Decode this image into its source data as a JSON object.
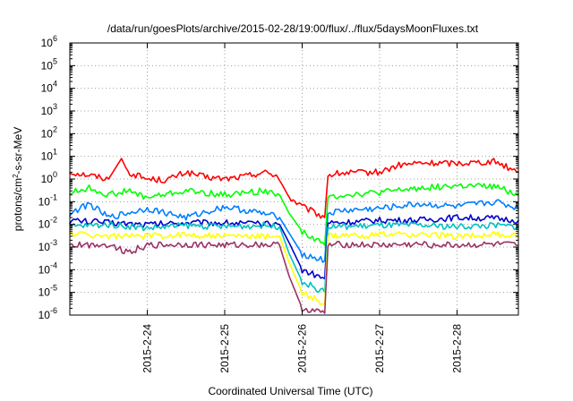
{
  "chart_data": {
    "type": "line",
    "title": "/data/run/goesPlots/archive/2015-02-28/19:00/flux/../flux/5daysMoonFluxes.txt",
    "xlabel": "Coordinated Universal Time (UTC)",
    "ylabel": "protons/cm²-s-sr-MeV",
    "ylabel_parts": {
      "prefix": "protons/cm",
      "sup": "2",
      "suffix": "-s-sr-MeV"
    },
    "yscale": "log",
    "ylim": [
      1e-06,
      1000000.0
    ],
    "xlim": [
      "2015-02-23T00:00",
      "2015-02-28T19:00"
    ],
    "y_ticks": [
      {
        "exp": "-6"
      },
      {
        "exp": "-5"
      },
      {
        "exp": "-4"
      },
      {
        "exp": "-3"
      },
      {
        "exp": "-2"
      },
      {
        "exp": "-1"
      },
      {
        "exp": "0"
      },
      {
        "exp": "1"
      },
      {
        "exp": "2"
      },
      {
        "exp": "3"
      },
      {
        "exp": "4"
      },
      {
        "exp": "5"
      },
      {
        "exp": "6"
      }
    ],
    "y_tick_base": "10",
    "x_ticks": [
      {
        "date": "2015-02-24T00:00",
        "label": "2015-2-24"
      },
      {
        "date": "2015-02-25T00:00",
        "label": "2015-2-25"
      },
      {
        "date": "2015-02-26T00:00",
        "label": "2015-2-26"
      },
      {
        "date": "2015-02-27T00:00",
        "label": "2015-2-27"
      },
      {
        "date": "2015-02-28T00:00",
        "label": "2015-2-28"
      }
    ],
    "grid": true,
    "series": [
      {
        "color": "#ff0000",
        "points": [
          [
            "2015-02-23T00:00",
            2.0
          ],
          [
            "2015-02-23T06:00",
            1.5
          ],
          [
            "2015-02-23T12:00",
            1.0
          ],
          [
            "2015-02-23T16:00",
            8.0
          ],
          [
            "2015-02-23T18:00",
            2.0
          ],
          [
            "2015-02-24T00:00",
            1.0
          ],
          [
            "2015-02-24T06:00",
            0.9
          ],
          [
            "2015-02-24T12:00",
            2.0
          ],
          [
            "2015-02-24T18:00",
            1.2
          ],
          [
            "2015-02-25T00:00",
            1.0
          ],
          [
            "2015-02-25T06:00",
            1.3
          ],
          [
            "2015-02-25T12:00",
            2.0
          ],
          [
            "2015-02-25T16:00",
            1.5
          ],
          [
            "2015-02-25T18:00",
            0.5
          ],
          [
            "2015-02-25T20:00",
            0.15
          ],
          [
            "2015-02-26T00:00",
            0.06
          ],
          [
            "2015-02-26T07:00",
            0.02
          ],
          [
            "2015-02-26T08:00",
            1.5
          ],
          [
            "2015-02-26T12:00",
            1.8
          ],
          [
            "2015-02-27T00:00",
            2.0
          ],
          [
            "2015-02-27T06:00",
            4.0
          ],
          [
            "2015-02-27T12:00",
            5.0
          ],
          [
            "2015-02-28T00:00",
            5.0
          ],
          [
            "2015-02-28T12:00",
            6.0
          ],
          [
            "2015-02-28T19:00",
            2.0
          ]
        ]
      },
      {
        "color": "#00ff00",
        "points": [
          [
            "2015-02-23T00:00",
            0.25
          ],
          [
            "2015-02-23T06:00",
            0.4
          ],
          [
            "2015-02-23T12:00",
            0.2
          ],
          [
            "2015-02-23T18:00",
            0.3
          ],
          [
            "2015-02-24T00:00",
            0.15
          ],
          [
            "2015-02-24T12:00",
            0.3
          ],
          [
            "2015-02-25T00:00",
            0.2
          ],
          [
            "2015-02-25T12:00",
            0.3
          ],
          [
            "2015-02-25T17:00",
            0.2
          ],
          [
            "2015-02-25T20:00",
            0.03
          ],
          [
            "2015-02-26T00:00",
            0.005
          ],
          [
            "2015-02-26T07:00",
            0.0012
          ],
          [
            "2015-02-26T08:00",
            0.15
          ],
          [
            "2015-02-26T12:00",
            0.2
          ],
          [
            "2015-02-27T00:00",
            0.25
          ],
          [
            "2015-02-27T12:00",
            0.4
          ],
          [
            "2015-02-28T00:00",
            0.5
          ],
          [
            "2015-02-28T12:00",
            0.45
          ],
          [
            "2015-02-28T19:00",
            0.2
          ]
        ]
      },
      {
        "color": "#0080ff",
        "points": [
          [
            "2015-02-23T00:00",
            0.03
          ],
          [
            "2015-02-23T06:00",
            0.08
          ],
          [
            "2015-02-23T12:00",
            0.02
          ],
          [
            "2015-02-24T00:00",
            0.05
          ],
          [
            "2015-02-24T12:00",
            0.02
          ],
          [
            "2015-02-25T00:00",
            0.06
          ],
          [
            "2015-02-25T12:00",
            0.03
          ],
          [
            "2015-02-25T17:00",
            0.02
          ],
          [
            "2015-02-25T20:00",
            0.004
          ],
          [
            "2015-02-26T00:00",
            0.0005
          ],
          [
            "2015-02-26T07:00",
            0.00025
          ],
          [
            "2015-02-26T08:00",
            0.03
          ],
          [
            "2015-02-26T12:00",
            0.04
          ],
          [
            "2015-02-27T00:00",
            0.05
          ],
          [
            "2015-02-27T12:00",
            0.08
          ],
          [
            "2015-02-28T00:00",
            0.06
          ],
          [
            "2015-02-28T12:00",
            0.1
          ],
          [
            "2015-02-28T19:00",
            0.05
          ]
        ]
      },
      {
        "color": "#0000cc",
        "points": [
          [
            "2015-02-23T00:00",
            0.015
          ],
          [
            "2015-02-23T12:00",
            0.012
          ],
          [
            "2015-02-24T00:00",
            0.01
          ],
          [
            "2015-02-24T12:00",
            0.012
          ],
          [
            "2015-02-25T00:00",
            0.012
          ],
          [
            "2015-02-25T12:00",
            0.01
          ],
          [
            "2015-02-25T17:00",
            0.01
          ],
          [
            "2015-02-25T20:00",
            0.0015
          ],
          [
            "2015-02-26T00:00",
            0.0001
          ],
          [
            "2015-02-26T07:00",
            4e-05
          ],
          [
            "2015-02-26T08:00",
            0.012
          ],
          [
            "2015-02-26T12:00",
            0.012
          ],
          [
            "2015-02-27T00:00",
            0.015
          ],
          [
            "2015-02-27T12:00",
            0.015
          ],
          [
            "2015-02-28T00:00",
            0.02
          ],
          [
            "2015-02-28T12:00",
            0.018
          ],
          [
            "2015-02-28T19:00",
            0.015
          ]
        ]
      },
      {
        "color": "#00c0c0",
        "points": [
          [
            "2015-02-23T00:00",
            0.008
          ],
          [
            "2015-02-23T12:00",
            0.01
          ],
          [
            "2015-02-24T00:00",
            0.007
          ],
          [
            "2015-02-24T12:00",
            0.009
          ],
          [
            "2015-02-25T00:00",
            0.008
          ],
          [
            "2015-02-25T12:00",
            0.009
          ],
          [
            "2015-02-25T17:00",
            0.008
          ],
          [
            "2015-02-25T20:00",
            0.0005
          ],
          [
            "2015-02-26T00:00",
            3e-05
          ],
          [
            "2015-02-26T07:00",
            1e-05
          ],
          [
            "2015-02-26T08:00",
            0.008
          ],
          [
            "2015-02-26T12:00",
            0.008
          ],
          [
            "2015-02-27T00:00",
            0.009
          ],
          [
            "2015-02-27T12:00",
            0.009
          ],
          [
            "2015-02-28T00:00",
            0.008
          ],
          [
            "2015-02-28T12:00",
            0.009
          ],
          [
            "2015-02-28T19:00",
            0.008
          ]
        ]
      },
      {
        "color": "#ffff00",
        "points": [
          [
            "2015-02-23T00:00",
            0.004
          ],
          [
            "2015-02-23T12:00",
            0.003
          ],
          [
            "2015-02-24T00:00",
            0.003
          ],
          [
            "2015-02-24T12:00",
            0.0035
          ],
          [
            "2015-02-25T00:00",
            0.003
          ],
          [
            "2015-02-25T12:00",
            0.003
          ],
          [
            "2015-02-25T17:00",
            0.003
          ],
          [
            "2015-02-25T20:00",
            0.0002
          ],
          [
            "2015-02-26T00:00",
            1e-05
          ],
          [
            "2015-02-26T07:00",
            3e-06
          ],
          [
            "2015-02-26T08:00",
            0.003
          ],
          [
            "2015-02-26T12:00",
            0.003
          ],
          [
            "2015-02-27T00:00",
            0.0035
          ],
          [
            "2015-02-27T12:00",
            0.0035
          ],
          [
            "2015-02-28T00:00",
            0.003
          ],
          [
            "2015-02-28T12:00",
            0.0035
          ],
          [
            "2015-02-28T19:00",
            0.003
          ]
        ]
      },
      {
        "color": "#993366",
        "points": [
          [
            "2015-02-23T00:00",
            0.0012
          ],
          [
            "2015-02-23T12:00",
            0.0013
          ],
          [
            "2015-02-23T18:00",
            0.0006
          ],
          [
            "2015-02-24T00:00",
            0.0012
          ],
          [
            "2015-02-24T12:00",
            0.0013
          ],
          [
            "2015-02-25T00:00",
            0.0012
          ],
          [
            "2015-02-25T12:00",
            0.0013
          ],
          [
            "2015-02-25T17:00",
            0.0012
          ],
          [
            "2015-02-25T20:00",
            5e-05
          ],
          [
            "2015-02-26T00:00",
            2e-06
          ],
          [
            "2015-02-26T07:00",
            1.2e-06
          ],
          [
            "2015-02-26T08:00",
            0.0012
          ],
          [
            "2015-02-26T12:00",
            0.0013
          ],
          [
            "2015-02-27T00:00",
            0.0012
          ],
          [
            "2015-02-27T12:00",
            0.0013
          ],
          [
            "2015-02-28T00:00",
            0.0012
          ],
          [
            "2015-02-28T12:00",
            0.0013
          ],
          [
            "2015-02-28T19:00",
            0.0012
          ]
        ]
      }
    ]
  }
}
